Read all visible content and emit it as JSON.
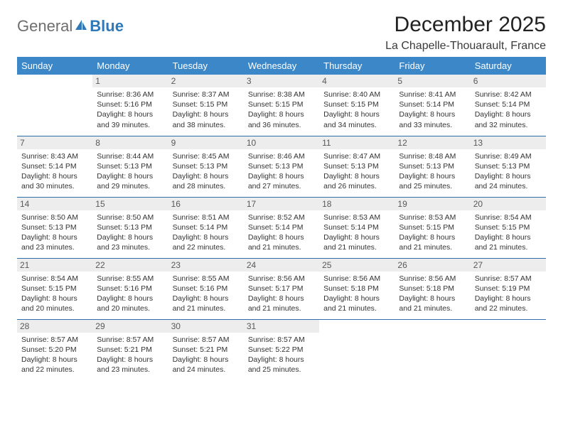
{
  "brand": {
    "general": "General",
    "blue": "Blue"
  },
  "title": "December 2025",
  "location": "La Chapelle-Thouarault, France",
  "colors": {
    "header_bg": "#3b87c8",
    "row_divider": "#2f6fa8",
    "daynum_bg": "#ededed",
    "daynum_color": "#595959",
    "logo_gray": "#6e6e6e",
    "logo_blue": "#2f79b9"
  },
  "day_headers": [
    "Sunday",
    "Monday",
    "Tuesday",
    "Wednesday",
    "Thursday",
    "Friday",
    "Saturday"
  ],
  "weeks": [
    [
      {
        "empty": true
      },
      {
        "n": "1",
        "sr": "8:36 AM",
        "ss": "5:16 PM",
        "dl": "8 hours and 39 minutes."
      },
      {
        "n": "2",
        "sr": "8:37 AM",
        "ss": "5:15 PM",
        "dl": "8 hours and 38 minutes."
      },
      {
        "n": "3",
        "sr": "8:38 AM",
        "ss": "5:15 PM",
        "dl": "8 hours and 36 minutes."
      },
      {
        "n": "4",
        "sr": "8:40 AM",
        "ss": "5:15 PM",
        "dl": "8 hours and 34 minutes."
      },
      {
        "n": "5",
        "sr": "8:41 AM",
        "ss": "5:14 PM",
        "dl": "8 hours and 33 minutes."
      },
      {
        "n": "6",
        "sr": "8:42 AM",
        "ss": "5:14 PM",
        "dl": "8 hours and 32 minutes."
      }
    ],
    [
      {
        "n": "7",
        "sr": "8:43 AM",
        "ss": "5:14 PM",
        "dl": "8 hours and 30 minutes."
      },
      {
        "n": "8",
        "sr": "8:44 AM",
        "ss": "5:13 PM",
        "dl": "8 hours and 29 minutes."
      },
      {
        "n": "9",
        "sr": "8:45 AM",
        "ss": "5:13 PM",
        "dl": "8 hours and 28 minutes."
      },
      {
        "n": "10",
        "sr": "8:46 AM",
        "ss": "5:13 PM",
        "dl": "8 hours and 27 minutes."
      },
      {
        "n": "11",
        "sr": "8:47 AM",
        "ss": "5:13 PM",
        "dl": "8 hours and 26 minutes."
      },
      {
        "n": "12",
        "sr": "8:48 AM",
        "ss": "5:13 PM",
        "dl": "8 hours and 25 minutes."
      },
      {
        "n": "13",
        "sr": "8:49 AM",
        "ss": "5:13 PM",
        "dl": "8 hours and 24 minutes."
      }
    ],
    [
      {
        "n": "14",
        "sr": "8:50 AM",
        "ss": "5:13 PM",
        "dl": "8 hours and 23 minutes."
      },
      {
        "n": "15",
        "sr": "8:50 AM",
        "ss": "5:13 PM",
        "dl": "8 hours and 23 minutes."
      },
      {
        "n": "16",
        "sr": "8:51 AM",
        "ss": "5:14 PM",
        "dl": "8 hours and 22 minutes."
      },
      {
        "n": "17",
        "sr": "8:52 AM",
        "ss": "5:14 PM",
        "dl": "8 hours and 21 minutes."
      },
      {
        "n": "18",
        "sr": "8:53 AM",
        "ss": "5:14 PM",
        "dl": "8 hours and 21 minutes."
      },
      {
        "n": "19",
        "sr": "8:53 AM",
        "ss": "5:15 PM",
        "dl": "8 hours and 21 minutes."
      },
      {
        "n": "20",
        "sr": "8:54 AM",
        "ss": "5:15 PM",
        "dl": "8 hours and 21 minutes."
      }
    ],
    [
      {
        "n": "21",
        "sr": "8:54 AM",
        "ss": "5:15 PM",
        "dl": "8 hours and 20 minutes."
      },
      {
        "n": "22",
        "sr": "8:55 AM",
        "ss": "5:16 PM",
        "dl": "8 hours and 20 minutes."
      },
      {
        "n": "23",
        "sr": "8:55 AM",
        "ss": "5:16 PM",
        "dl": "8 hours and 21 minutes."
      },
      {
        "n": "24",
        "sr": "8:56 AM",
        "ss": "5:17 PM",
        "dl": "8 hours and 21 minutes."
      },
      {
        "n": "25",
        "sr": "8:56 AM",
        "ss": "5:18 PM",
        "dl": "8 hours and 21 minutes."
      },
      {
        "n": "26",
        "sr": "8:56 AM",
        "ss": "5:18 PM",
        "dl": "8 hours and 21 minutes."
      },
      {
        "n": "27",
        "sr": "8:57 AM",
        "ss": "5:19 PM",
        "dl": "8 hours and 22 minutes."
      }
    ],
    [
      {
        "n": "28",
        "sr": "8:57 AM",
        "ss": "5:20 PM",
        "dl": "8 hours and 22 minutes."
      },
      {
        "n": "29",
        "sr": "8:57 AM",
        "ss": "5:21 PM",
        "dl": "8 hours and 23 minutes."
      },
      {
        "n": "30",
        "sr": "8:57 AM",
        "ss": "5:21 PM",
        "dl": "8 hours and 24 minutes."
      },
      {
        "n": "31",
        "sr": "8:57 AM",
        "ss": "5:22 PM",
        "dl": "8 hours and 25 minutes."
      },
      {
        "empty": true
      },
      {
        "empty": true
      },
      {
        "empty": true
      }
    ]
  ],
  "labels": {
    "sunrise": "Sunrise:",
    "sunset": "Sunset:",
    "daylight": "Daylight:"
  }
}
